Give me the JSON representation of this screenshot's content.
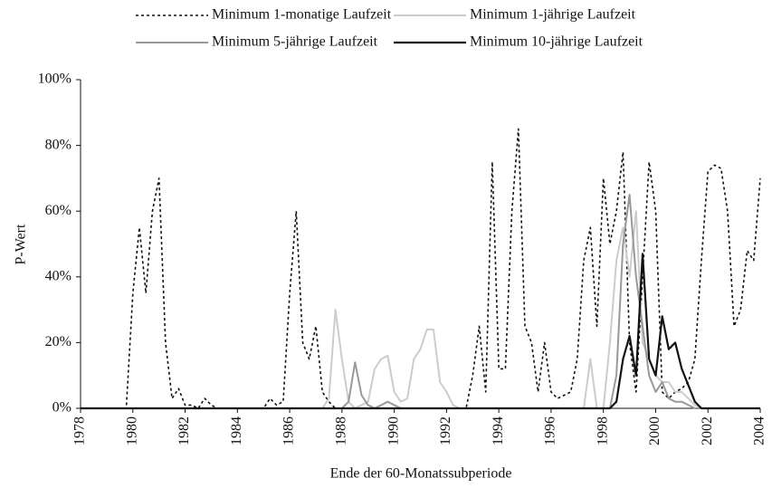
{
  "chart_data": {
    "type": "line",
    "x_label": "Ende der 60-Monatssubperiode",
    "y_label": "P-Wert",
    "x": [
      1978,
      1978.25,
      1978.5,
      1978.75,
      1979,
      1979.25,
      1979.5,
      1979.75,
      1980,
      1980.25,
      1980.5,
      1980.75,
      1981,
      1981.25,
      1981.5,
      1981.75,
      1982,
      1982.25,
      1982.5,
      1982.75,
      1983,
      1983.25,
      1983.5,
      1983.75,
      1984,
      1984.25,
      1984.5,
      1984.75,
      1985,
      1985.25,
      1985.5,
      1985.75,
      1986,
      1986.25,
      1986.5,
      1986.75,
      1987,
      1987.25,
      1987.5,
      1987.75,
      1988,
      1988.25,
      1988.5,
      1988.75,
      1989,
      1989.25,
      1989.5,
      1989.75,
      1990,
      1990.25,
      1990.5,
      1990.75,
      1991,
      1991.25,
      1991.5,
      1991.75,
      1992,
      1992.25,
      1992.5,
      1992.75,
      1993,
      1993.25,
      1993.5,
      1993.75,
      1994,
      1994.25,
      1994.5,
      1994.75,
      1995,
      1995.25,
      1995.5,
      1995.75,
      1996,
      1996.25,
      1996.5,
      1996.75,
      1997,
      1997.25,
      1997.5,
      1997.75,
      1998,
      1998.25,
      1998.5,
      1998.75,
      1999,
      1999.25,
      1999.5,
      1999.75,
      2000,
      2000.25,
      2000.5,
      2000.75,
      2001,
      2001.25,
      2001.5,
      2001.75,
      2002,
      2002.25,
      2002.5,
      2002.75,
      2003,
      2003.25,
      2003.5,
      2003.75,
      2004
    ],
    "series": [
      {
        "name": "Minimum 1-monatige Laufzeit",
        "color": "#111111",
        "dash": "3,3",
        "width": 1.6,
        "values": [
          0,
          0,
          0,
          0,
          0,
          0,
          0,
          0,
          35,
          55,
          35,
          60,
          70,
          20,
          3,
          6,
          1,
          1,
          0,
          3,
          1,
          0,
          0,
          0,
          0,
          0,
          0,
          0,
          0,
          3,
          1,
          2,
          35,
          60,
          20,
          15,
          25,
          5,
          2,
          0,
          0,
          0,
          0,
          0,
          0,
          0,
          0,
          0,
          0,
          0,
          0,
          0,
          0,
          0,
          0,
          0,
          0,
          0,
          0,
          0,
          10,
          25,
          5,
          75,
          12,
          12,
          60,
          85,
          25,
          20,
          5,
          20,
          5,
          3,
          4,
          5,
          15,
          45,
          55,
          25,
          70,
          50,
          60,
          78,
          20,
          5,
          40,
          75,
          60,
          5,
          3,
          5,
          6,
          8,
          15,
          45,
          72,
          74,
          73,
          60,
          25,
          30,
          48,
          45,
          70
        ]
      },
      {
        "name": "Minimum 1-jährige Laufzeit",
        "color": "#cccccc",
        "width": 2,
        "values": [
          0,
          0,
          0,
          0,
          0,
          0,
          0,
          0,
          0,
          0,
          0,
          0,
          0,
          0,
          0,
          0,
          0,
          0,
          0,
          0,
          0,
          0,
          0,
          0,
          0,
          0,
          0,
          0,
          0,
          0,
          0,
          0,
          0,
          0,
          0,
          0,
          0,
          0,
          3,
          30,
          15,
          2,
          0,
          1,
          2,
          12,
          15,
          16,
          5,
          2,
          3,
          15,
          18,
          24,
          24,
          8,
          5,
          1,
          0,
          0,
          0,
          0,
          0,
          0,
          0,
          0,
          0,
          0,
          0,
          0,
          0,
          0,
          0,
          0,
          0,
          0,
          0,
          0,
          15,
          0,
          0,
          20,
          45,
          55,
          40,
          60,
          20,
          15,
          10,
          8,
          8,
          5,
          5,
          3,
          1,
          0,
          0,
          0,
          0,
          0,
          0,
          0,
          0,
          0,
          0
        ]
      },
      {
        "name": "Minimum 5-jährige Laufzeit",
        "color": "#999999",
        "width": 2,
        "values": [
          0,
          0,
          0,
          0,
          0,
          0,
          0,
          0,
          0,
          0,
          0,
          0,
          0,
          0,
          0,
          0,
          0,
          0,
          0,
          0,
          0,
          0,
          0,
          0,
          0,
          0,
          0,
          0,
          0,
          0,
          0,
          0,
          0,
          0,
          0,
          0,
          0,
          0,
          0,
          0,
          0,
          2,
          14,
          4,
          1,
          0,
          1,
          2,
          1,
          0,
          0,
          0,
          0,
          0,
          0,
          0,
          0,
          0,
          0,
          0,
          0,
          0,
          0,
          0,
          0,
          0,
          0,
          0,
          0,
          0,
          0,
          0,
          0,
          0,
          0,
          0,
          0,
          0,
          0,
          0,
          0,
          0,
          10,
          50,
          65,
          40,
          25,
          10,
          5,
          8,
          3,
          2,
          2,
          1,
          0,
          0,
          0,
          0,
          0,
          0,
          0,
          0,
          0,
          0,
          0
        ]
      },
      {
        "name": "Minimum 10-jährige Laufzeit",
        "color": "#111111",
        "width": 2.2,
        "values": [
          0,
          0,
          0,
          0,
          0,
          0,
          0,
          0,
          0,
          0,
          0,
          0,
          0,
          0,
          0,
          0,
          0,
          0,
          0,
          0,
          0,
          0,
          0,
          0,
          0,
          0,
          0,
          0,
          0,
          0,
          0,
          0,
          0,
          0,
          0,
          0,
          0,
          0,
          0,
          0,
          0,
          0,
          0,
          0,
          0,
          0,
          0,
          0,
          0,
          0,
          0,
          0,
          0,
          0,
          0,
          0,
          0,
          0,
          0,
          0,
          0,
          0,
          0,
          0,
          0,
          0,
          0,
          0,
          0,
          0,
          0,
          0,
          0,
          0,
          0,
          0,
          0,
          0,
          0,
          0,
          0,
          0,
          2,
          15,
          22,
          10,
          47,
          15,
          10,
          28,
          18,
          20,
          12,
          7,
          2,
          0,
          0,
          0,
          0,
          0,
          0,
          0,
          0,
          0,
          0
        ]
      }
    ],
    "xlim": [
      1978,
      2004
    ],
    "xticks": [
      1978,
      1980,
      1982,
      1984,
      1986,
      1988,
      1990,
      1992,
      1994,
      1996,
      1998,
      2000,
      2002,
      2004
    ],
    "ylim": [
      0,
      100
    ],
    "yticks": [
      {
        "value": 0,
        "label": "0%"
      },
      {
        "value": 20,
        "label": "20%"
      },
      {
        "value": 40,
        "label": "40%"
      },
      {
        "value": 60,
        "label": "60%"
      },
      {
        "value": 80,
        "label": "80%"
      },
      {
        "value": 100,
        "label": "100%"
      }
    ]
  }
}
